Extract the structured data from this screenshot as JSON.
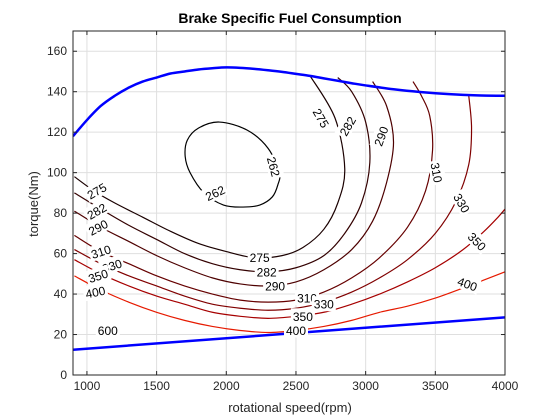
{
  "chart_data": {
    "type": "contour",
    "title": "Brake Specific Fuel Consumption",
    "xlabel": "rotational speed(rpm)",
    "ylabel": "torque(Nm)",
    "xlim": [
      900,
      4000
    ],
    "ylim": [
      0,
      170
    ],
    "x_ticks": [
      1000,
      1500,
      2000,
      2500,
      3000,
      3500,
      4000
    ],
    "y_ticks": [
      0,
      20,
      40,
      60,
      80,
      100,
      120,
      140,
      160
    ],
    "grid": true,
    "contours": [
      {
        "level": "262",
        "color": "#000000",
        "closed": true,
        "x": [
          2380,
          2370,
          2330,
          2240,
          2120,
          1980,
          1840,
          1740,
          1705,
          1720,
          1800,
          1950,
          2150,
          2300,
          2380
        ],
        "y": [
          100,
          94,
          88,
          84,
          83,
          84,
          90,
          100,
          108,
          116,
          122,
          125,
          121,
          112,
          100
        ]
      },
      {
        "level": "275",
        "color": "#1a0000",
        "closed": false,
        "x": [
          910,
          1050,
          1200,
          1400,
          1600,
          1800,
          2000,
          2200,
          2400,
          2550,
          2700,
          2800,
          2850,
          2780,
          2600
        ],
        "y": [
          98,
          91,
          85,
          78,
          71,
          65,
          61,
          58,
          59,
          63,
          72,
          85,
          102,
          127,
          148
        ]
      },
      {
        "level": "282",
        "color": "#330000",
        "closed": false,
        "x": [
          910,
          1100,
          1300,
          1500,
          1700,
          1900,
          2100,
          2300,
          2500,
          2700,
          2850,
          2970,
          3030,
          3000,
          2900,
          2800
        ],
        "y": [
          90,
          82,
          74,
          67,
          60,
          55,
          52,
          51,
          53,
          59,
          70,
          85,
          105,
          125,
          140,
          147
        ]
      },
      {
        "level": "290",
        "color": "#4d0000",
        "closed": false,
        "x": [
          910,
          1100,
          1300,
          1500,
          1700,
          1900,
          2100,
          2300,
          2500,
          2700,
          2900,
          3050,
          3150,
          3200,
          3150,
          3050
        ],
        "y": [
          81,
          73,
          66,
          59,
          53,
          48,
          45,
          44,
          46,
          52,
          62,
          76,
          95,
          115,
          133,
          145
        ]
      },
      {
        "level": "310",
        "color": "#660000",
        "closed": false,
        "x": [
          910,
          1100,
          1300,
          1500,
          1700,
          1900,
          2100,
          2300,
          2500,
          2700,
          2900,
          3100,
          3300,
          3430,
          3480,
          3460,
          3400,
          3340
        ],
        "y": [
          69,
          61,
          55,
          49,
          44,
          40,
          37,
          36,
          37,
          41,
          48,
          58,
          73,
          91,
          111,
          128,
          138,
          145
        ]
      },
      {
        "level": "330",
        "color": "#800000",
        "closed": false,
        "x": [
          910,
          1100,
          1300,
          1500,
          1700,
          1900,
          2100,
          2300,
          2500,
          2700,
          2900,
          3100,
          3300,
          3500,
          3650,
          3740,
          3760,
          3740
        ],
        "y": [
          62,
          55,
          49,
          44,
          39,
          35,
          33,
          32,
          33,
          36,
          41,
          48,
          57,
          70,
          86,
          104,
          122,
          138
        ]
      },
      {
        "level": "350",
        "color": "#a60000",
        "closed": false,
        "x": [
          910,
          1100,
          1300,
          1500,
          1700,
          1900,
          2100,
          2300,
          2500,
          2700,
          2900,
          3100,
          3300,
          3500,
          3700,
          3850,
          3950,
          4000
        ],
        "y": [
          57,
          50,
          44,
          39,
          35,
          31,
          29,
          28,
          29,
          31,
          35,
          40,
          46,
          53,
          62,
          71,
          78,
          82
        ]
      },
      {
        "level": "400",
        "color": "#e61a00",
        "closed": false,
        "x": [
          910,
          1100,
          1300,
          1500,
          1700,
          1900,
          2100,
          2300,
          2500,
          2700,
          2900,
          3100,
          3300,
          3500,
          3700,
          3850,
          4000
        ],
        "y": [
          49,
          42,
          36,
          31,
          27,
          24,
          22,
          21,
          22,
          24,
          27,
          31,
          34,
          38,
          43,
          47,
          51
        ]
      }
    ],
    "contour_labels": [
      {
        "text": "262",
        "x": 1920,
        "y": 90,
        "angle": 25,
        "color": "#000000"
      },
      {
        "text": "262",
        "x": 2340,
        "y": 103,
        "angle": -75,
        "color": "#000000"
      },
      {
        "text": "275",
        "x": 1070,
        "y": 91,
        "angle": 30,
        "color": "#1a0000"
      },
      {
        "text": "275",
        "x": 2240,
        "y": 58,
        "angle": 0,
        "color": "#1a0000"
      },
      {
        "text": "275",
        "x": 2680,
        "y": 127,
        "angle": -60,
        "color": "#1a0000"
      },
      {
        "text": "282",
        "x": 1070,
        "y": 81,
        "angle": 30,
        "color": "#330000"
      },
      {
        "text": "282",
        "x": 2290,
        "y": 51,
        "angle": 0,
        "color": "#330000"
      },
      {
        "text": "282",
        "x": 2870,
        "y": 123,
        "angle": 60,
        "color": "#330000"
      },
      {
        "text": "290",
        "x": 1080,
        "y": 73,
        "angle": 28,
        "color": "#4d0000"
      },
      {
        "text": "290",
        "x": 2350,
        "y": 44,
        "angle": 0,
        "color": "#4d0000"
      },
      {
        "text": "290",
        "x": 3110,
        "y": 118,
        "angle": 70,
        "color": "#4d0000"
      },
      {
        "text": "310",
        "x": 1100,
        "y": 61,
        "angle": 18,
        "color": "#660000"
      },
      {
        "text": "310",
        "x": 2580,
        "y": 38,
        "angle": 0,
        "color": "#660000"
      },
      {
        "text": "310",
        "x": 3510,
        "y": 100,
        "angle": -80,
        "color": "#660000"
      },
      {
        "text": "330",
        "x": 1180,
        "y": 54,
        "angle": 18,
        "color": "#800000"
      },
      {
        "text": "330",
        "x": 2700,
        "y": 35,
        "angle": 0,
        "color": "#800000"
      },
      {
        "text": "330",
        "x": 3690,
        "y": 85,
        "angle": -60,
        "color": "#800000"
      },
      {
        "text": "350",
        "x": 1080,
        "y": 49,
        "angle": 18,
        "color": "#a60000"
      },
      {
        "text": "350",
        "x": 2550,
        "y": 29,
        "angle": 0,
        "color": "#a60000"
      },
      {
        "text": "350",
        "x": 3800,
        "y": 66,
        "angle": -45,
        "color": "#a60000"
      },
      {
        "text": "400",
        "x": 1060,
        "y": 41,
        "angle": 12,
        "color": "#e61a00"
      },
      {
        "text": "400",
        "x": 2500,
        "y": 22,
        "angle": 0,
        "color": "#e61a00"
      },
      {
        "text": "400",
        "x": 3730,
        "y": 45,
        "angle": -20,
        "color": "#e61a00"
      },
      {
        "text": "600",
        "x": 1150,
        "y": 22,
        "angle": 0,
        "color": "#e61a00"
      }
    ],
    "boundary_curves": [
      {
        "name": "",
        "color": "#0000ff",
        "x": [
          900,
          1000,
          1100,
          1200,
          1300,
          1400,
          1500,
          1600,
          1700,
          1800,
          1900,
          2000,
          2100,
          2200,
          2300,
          2400,
          2500,
          2600,
          2700,
          2800,
          2900,
          3000,
          3200,
          3400,
          3600,
          3800,
          4000
        ],
        "y": [
          118,
          126,
          133,
          138,
          142,
          145,
          147,
          149,
          150,
          151,
          151.6,
          152,
          151.8,
          151.3,
          150.6,
          149.8,
          148.8,
          147.8,
          146.6,
          145.4,
          144.2,
          143.1,
          141.2,
          139.8,
          138.8,
          138.2,
          138
        ]
      },
      {
        "name": "",
        "color": "#0000ff",
        "x": [
          900,
          4000
        ],
        "y": [
          12.5,
          28.5
        ]
      }
    ]
  }
}
